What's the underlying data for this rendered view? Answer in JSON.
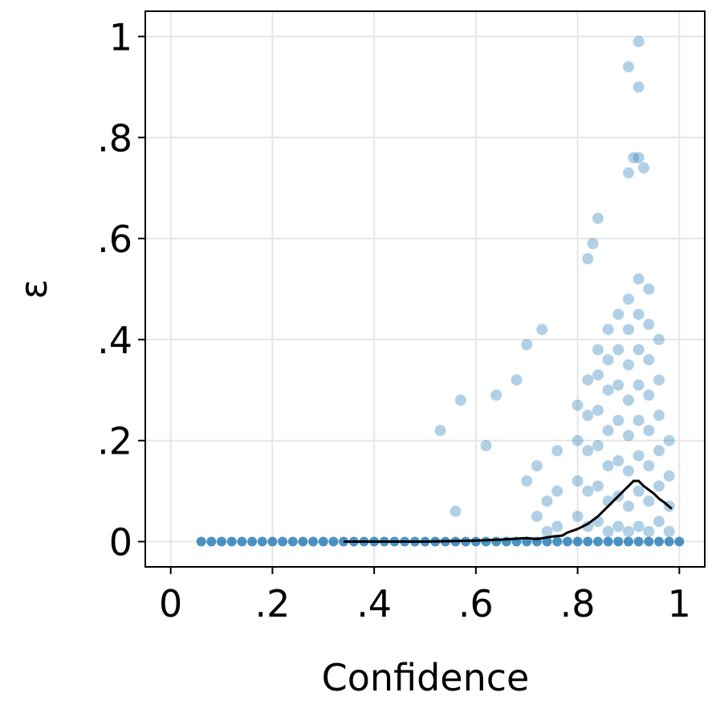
{
  "chart_data": {
    "type": "scatter",
    "xlabel": "Confidence",
    "ylabel": "ε",
    "xlim": [
      -0.05,
      1.05
    ],
    "ylim": [
      -0.05,
      1.05
    ],
    "xticks": [
      0,
      {
        "value": 0.2,
        "label": ".2"
      },
      {
        "value": 0.4,
        "label": ".4"
      },
      {
        "value": 0.6,
        "label": ".6"
      },
      {
        "value": 0.8,
        "label": ".8"
      },
      1
    ],
    "yticks": [
      0,
      {
        "value": 0.2,
        "label": ".2"
      },
      {
        "value": 0.4,
        "label": ".4"
      },
      {
        "value": 0.6,
        "label": ".6"
      },
      {
        "value": 0.8,
        "label": ".8"
      },
      1
    ],
    "grid": true,
    "series": [
      {
        "type": "scatter",
        "color": "#1f77b4",
        "x": [
          0.06,
          0.08,
          0.1,
          0.12,
          0.14,
          0.16,
          0.18,
          0.2,
          0.22,
          0.24,
          0.26,
          0.28,
          0.3,
          0.32,
          0.34,
          0.36,
          0.38,
          0.4,
          0.42,
          0.44,
          0.46,
          0.48,
          0.5,
          0.52,
          0.54,
          0.56,
          0.58,
          0.6,
          0.62,
          0.64,
          0.66,
          0.68,
          0.7,
          0.72,
          0.74,
          0.76,
          0.78,
          0.8,
          0.82,
          0.84,
          0.86,
          0.88,
          0.9,
          0.92,
          0.94,
          0.96,
          0.98,
          1.0,
          0.7,
          0.72,
          0.72,
          0.74,
          0.74,
          0.76,
          0.76,
          0.76,
          0.8,
          0.8,
          0.8,
          0.8,
          0.82,
          0.82,
          0.82,
          0.82,
          0.82,
          0.84,
          0.84,
          0.84,
          0.84,
          0.84,
          0.84,
          0.86,
          0.86,
          0.86,
          0.86,
          0.86,
          0.86,
          0.86,
          0.88,
          0.88,
          0.88,
          0.88,
          0.88,
          0.88,
          0.88,
          0.9,
          0.9,
          0.9,
          0.9,
          0.9,
          0.9,
          0.9,
          0.9,
          0.92,
          0.92,
          0.92,
          0.92,
          0.92,
          0.92,
          0.92,
          0.92,
          0.94,
          0.94,
          0.94,
          0.94,
          0.94,
          0.94,
          0.94,
          0.94,
          0.96,
          0.96,
          0.96,
          0.96,
          0.96,
          0.96,
          0.98,
          0.98,
          0.98,
          0.98,
          0.9,
          0.92,
          0.92,
          0.91,
          0.92,
          0.93,
          0.9,
          0.84,
          0.83,
          0.82,
          0.73,
          0.7,
          0.64,
          0.57,
          0.53,
          0.62,
          0.56,
          0.68
        ],
        "values": [
          0,
          0,
          0,
          0,
          0,
          0,
          0,
          0,
          0,
          0,
          0,
          0,
          0,
          0,
          0,
          0,
          0,
          0,
          0,
          0,
          0,
          0,
          0,
          0,
          0,
          0,
          0,
          0,
          0,
          0,
          0,
          0,
          0,
          0,
          0,
          0,
          0,
          0,
          0,
          0,
          0,
          0,
          0,
          0,
          0,
          0,
          0,
          0,
          0.12,
          0.05,
          0.15,
          0.02,
          0.08,
          0.03,
          0.1,
          0.18,
          0.05,
          0.12,
          0.2,
          0.27,
          0.03,
          0.1,
          0.18,
          0.25,
          0.32,
          0.04,
          0.11,
          0.19,
          0.26,
          0.33,
          0.38,
          0.02,
          0.08,
          0.15,
          0.22,
          0.3,
          0.36,
          0.42,
          0.03,
          0.09,
          0.16,
          0.24,
          0.31,
          0.38,
          0.45,
          0.02,
          0.07,
          0.14,
          0.21,
          0.28,
          0.35,
          0.42,
          0.48,
          0.03,
          0.1,
          0.17,
          0.24,
          0.31,
          0.38,
          0.45,
          0.52,
          0.02,
          0.08,
          0.15,
          0.22,
          0.29,
          0.36,
          0.43,
          0.5,
          0.04,
          0.11,
          0.18,
          0.25,
          0.32,
          0.4,
          0.02,
          0.07,
          0.13,
          0.2,
          0.94,
          0.99,
          0.9,
          0.76,
          0.76,
          0.74,
          0.73,
          0.64,
          0.59,
          0.56,
          0.42,
          0.39,
          0.29,
          0.28,
          0.22,
          0.19,
          0.06,
          0.32
        ]
      },
      {
        "type": "line",
        "color": "#000000",
        "x": [
          0.34,
          0.5,
          0.6,
          0.65,
          0.7,
          0.72,
          0.75,
          0.77,
          0.78,
          0.8,
          0.82,
          0.84,
          0.86,
          0.88,
          0.9,
          0.91,
          0.92,
          0.93,
          0.95,
          0.96,
          0.97,
          0.985
        ],
        "values": [
          0,
          0,
          0.002,
          0.004,
          0.007,
          0.005,
          0.01,
          0.012,
          0.018,
          0.025,
          0.035,
          0.05,
          0.07,
          0.09,
          0.11,
          0.12,
          0.12,
          0.11,
          0.095,
          0.085,
          0.078,
          0.065
        ]
      }
    ]
  }
}
